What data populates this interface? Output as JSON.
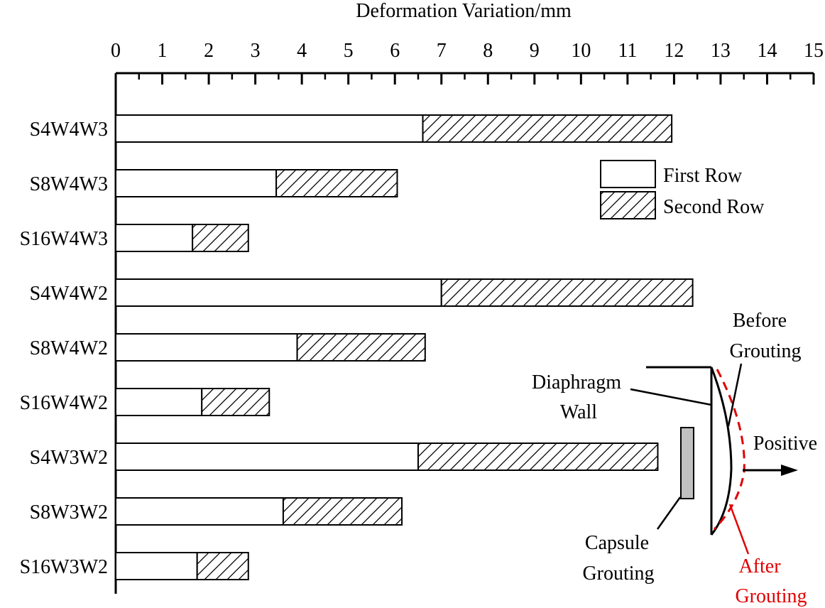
{
  "chart_data": {
    "type": "bar",
    "orientation": "horizontal",
    "stacked": true,
    "xlabel": "Deformation Variation/mm",
    "x_axis_position": "top",
    "xlim": [
      0,
      15
    ],
    "xticks": [
      "0",
      "1",
      "2",
      "3",
      "4",
      "5",
      "6",
      "7",
      "8",
      "9",
      "10",
      "11",
      "12",
      "13",
      "14",
      "15"
    ],
    "categories": [
      "S4W4W3",
      "S8W4W3",
      "S16W4W3",
      "S4W4W2",
      "S8W4W2",
      "S16W4W2",
      "S4W3W2",
      "S8W3W2",
      "S16W3W2"
    ],
    "series": [
      {
        "name": "First Row",
        "pattern": "none",
        "values": [
          6.6,
          3.45,
          1.65,
          7.0,
          3.9,
          1.85,
          6.5,
          3.6,
          1.75
        ]
      },
      {
        "name": "Second Row",
        "pattern": "hatch",
        "values": [
          5.35,
          2.6,
          1.2,
          5.4,
          2.75,
          1.45,
          5.15,
          2.55,
          1.1
        ]
      }
    ],
    "legend_position": "top-right",
    "grid": false
  },
  "inset_diagram": {
    "before_grouting_line1": "Before",
    "before_grouting_line2": "Grouting",
    "diaphragm_wall_line1": "Diaphragm",
    "diaphragm_wall_line2": "Wall",
    "positive": "Positive",
    "capsule_grouting_line1": "Capsule",
    "capsule_grouting_line2": "Grouting",
    "after_grouting_line1": "After",
    "after_grouting_line2": "Grouting",
    "after_color": "#e00000"
  }
}
